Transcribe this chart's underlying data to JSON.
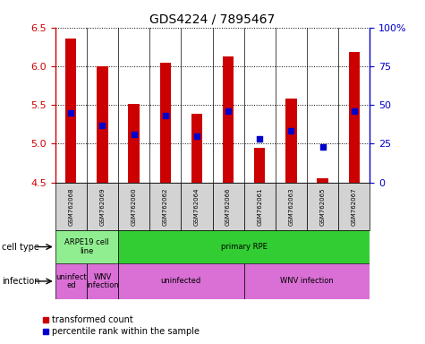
{
  "title": "GDS4224 / 7895467",
  "samples": [
    "GSM762068",
    "GSM762069",
    "GSM762060",
    "GSM762062",
    "GSM762064",
    "GSM762066",
    "GSM762061",
    "GSM762063",
    "GSM762065",
    "GSM762067"
  ],
  "transformed_counts": [
    6.36,
    6.0,
    5.51,
    6.05,
    5.38,
    6.13,
    4.95,
    5.58,
    4.55,
    6.18
  ],
  "percentile_ranks": [
    45,
    37,
    31,
    43,
    30,
    46,
    28,
    33,
    23,
    46
  ],
  "ylim": [
    4.5,
    6.5
  ],
  "yticks": [
    4.5,
    5.0,
    5.5,
    6.0,
    6.5
  ],
  "right_yticks": [
    0,
    25,
    50,
    75,
    100
  ],
  "right_ytick_labels": [
    "0",
    "25",
    "50",
    "75",
    "100%"
  ],
  "bar_color": "#cc0000",
  "dot_color": "#0000cc",
  "bar_bottom": 4.5,
  "cell_type_groups": [
    {
      "label": "ARPE19 cell\nline",
      "start": 0,
      "end": 2,
      "color": "#90ee90"
    },
    {
      "label": "primary RPE",
      "start": 2,
      "end": 10,
      "color": "#32cd32"
    }
  ],
  "infection_groups": [
    {
      "label": "uninfect\ned",
      "start": 0,
      "end": 1,
      "color": "#da70d6"
    },
    {
      "label": "WNV\ninfection",
      "start": 1,
      "end": 2,
      "color": "#da70d6"
    },
    {
      "label": "uninfected",
      "start": 2,
      "end": 6,
      "color": "#da70d6"
    },
    {
      "label": "WNV infection",
      "start": 6,
      "end": 10,
      "color": "#da70d6"
    }
  ],
  "row_label_cell_type": "cell type",
  "row_label_infection": "infection",
  "legend_items": [
    {
      "label": "transformed count",
      "color": "#cc0000",
      "marker": "s"
    },
    {
      "label": "percentile rank within the sample",
      "color": "#0000cc",
      "marker": "s"
    }
  ],
  "tick_label_color_left": "#cc0000",
  "tick_label_color_right": "#0000cc",
  "background_color": "#ffffff",
  "sample_bg_color": "#d3d3d3",
  "bar_width": 0.35
}
